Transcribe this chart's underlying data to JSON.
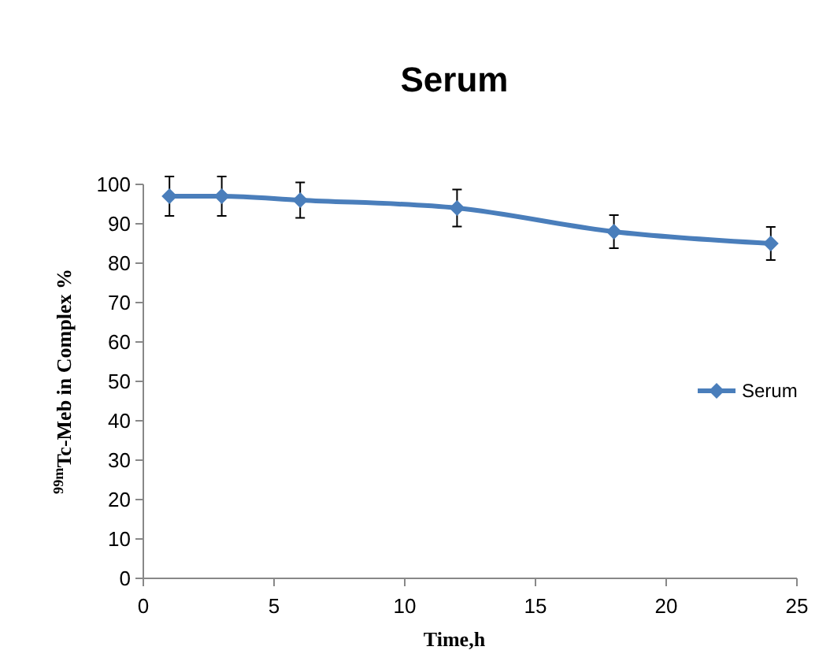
{
  "chart_data": {
    "type": "line",
    "title": "Serum",
    "xlabel": "Time,h",
    "ylabel": "$^{99m}$Tc-Meb in Complex  %",
    "x": [
      1,
      3,
      6,
      12,
      18,
      24
    ],
    "series": [
      {
        "name": "Serum",
        "color": "#4a7ebb",
        "values": [
          97,
          97,
          96,
          94,
          88,
          85
        ],
        "errors": [
          5,
          5,
          4.5,
          4.7,
          4.2,
          4.2
        ]
      }
    ],
    "xlim": [
      0,
      25
    ],
    "xticks": [
      0,
      5,
      10,
      15,
      20,
      25
    ],
    "ylim": [
      0,
      100
    ],
    "yticks": [
      0,
      10,
      20,
      30,
      40,
      50,
      60,
      70,
      80,
      90,
      100
    ],
    "grid": false,
    "legend": "right",
    "marker": "diamond",
    "line_style": "solid"
  }
}
